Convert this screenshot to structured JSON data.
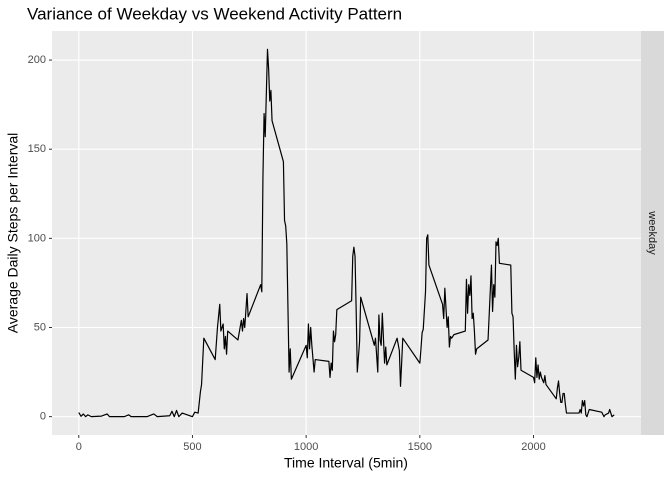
{
  "chart_data": {
    "type": "line",
    "title": "Variance of Weekday vs Weekend Activity Pattern",
    "x_label": "Time Interval (5min)",
    "y_label": "Average Daily Steps per Interval",
    "facet": "weekday",
    "color": "#000000",
    "grid": true,
    "xlim": [
      -117.75,
      2472.75
    ],
    "ylim": [
      -10.3,
      216.3
    ],
    "xticks": [
      0,
      500,
      1000,
      1500,
      2000
    ],
    "yticks": [
      0,
      50,
      100,
      150,
      200
    ],
    "x": [
      0,
      10,
      20,
      30,
      40,
      55,
      100,
      125,
      135,
      200,
      220,
      230,
      300,
      330,
      345,
      400,
      410,
      420,
      430,
      440,
      455,
      500,
      510,
      525,
      535,
      540,
      550,
      600,
      610,
      620,
      625,
      635,
      640,
      645,
      650,
      655,
      700,
      715,
      720,
      725,
      730,
      740,
      745,
      800,
      805,
      810,
      815,
      820,
      830,
      835,
      840,
      845,
      850,
      900,
      905,
      910,
      915,
      925,
      930,
      935,
      1000,
      1005,
      1010,
      1015,
      1020,
      1025,
      1035,
      1040,
      1100,
      1105,
      1110,
      1115,
      1120,
      1125,
      1130,
      1135,
      1200,
      1205,
      1210,
      1215,
      1220,
      1225,
      1235,
      1240,
      1300,
      1305,
      1315,
      1320,
      1325,
      1330,
      1335,
      1345,
      1350,
      1355,
      1400,
      1410,
      1415,
      1420,
      1425,
      1500,
      1505,
      1510,
      1515,
      1525,
      1530,
      1535,
      1540,
      1600,
      1605,
      1610,
      1620,
      1625,
      1630,
      1635,
      1640,
      1650,
      1700,
      1705,
      1710,
      1715,
      1720,
      1725,
      1730,
      1735,
      1740,
      1745,
      1750,
      1800,
      1815,
      1820,
      1825,
      1830,
      1835,
      1840,
      1845,
      1850,
      1900,
      1905,
      1910,
      1915,
      1920,
      1925,
      1930,
      1935,
      1940,
      1945,
      2000,
      2005,
      2010,
      2015,
      2020,
      2025,
      2030,
      2035,
      2045,
      2050,
      2055,
      2100,
      2105,
      2110,
      2115,
      2120,
      2125,
      2130,
      2135,
      2140,
      2145,
      2200,
      2205,
      2210,
      2215,
      2220,
      2225,
      2230,
      2235,
      2245,
      2300,
      2310,
      2315,
      2330,
      2335,
      2340,
      2345,
      2350,
      2355
    ],
    "values": [
      2.3,
      0.2,
      1.5,
      0,
      1,
      0,
      0.3,
      1.5,
      0,
      0,
      1,
      0,
      0,
      1.5,
      0,
      0.5,
      3,
      0,
      3.5,
      0,
      2,
      0,
      2.5,
      2,
      14,
      18,
      44,
      32,
      50,
      63,
      48,
      52,
      38,
      45,
      35,
      48,
      43,
      54,
      48,
      55,
      50,
      69,
      56,
      74,
      70,
      134,
      170,
      157,
      206,
      195,
      177,
      183,
      166,
      143,
      110,
      107,
      97,
      25,
      38,
      21,
      40,
      33,
      52,
      38,
      50,
      40,
      25,
      32,
      31,
      22,
      30,
      26,
      48,
      42,
      46,
      60,
      65,
      90,
      95,
      90,
      60,
      25,
      42,
      67,
      40,
      44,
      25,
      57,
      43,
      40,
      58,
      30,
      39,
      29,
      44,
      37,
      17,
      30,
      44,
      30,
      38,
      47,
      49,
      70,
      100,
      102,
      85,
      63,
      55,
      72,
      50,
      56,
      39,
      45,
      44,
      46,
      48,
      77,
      58,
      74,
      68,
      79,
      55,
      58,
      48,
      35,
      38,
      43,
      85,
      59,
      74,
      67,
      98,
      96,
      100,
      86,
      85,
      58,
      56,
      37,
      21,
      40,
      28,
      33,
      42,
      26,
      22,
      19,
      33,
      22,
      29,
      21,
      25,
      22,
      19,
      23,
      18,
      10,
      16,
      20,
      13,
      8,
      8,
      13,
      13,
      7,
      2,
      2,
      4,
      2,
      9,
      6,
      9,
      1,
      0,
      4,
      2.5,
      0,
      1,
      2,
      4,
      2,
      0,
      0.5,
      1
    ]
  }
}
